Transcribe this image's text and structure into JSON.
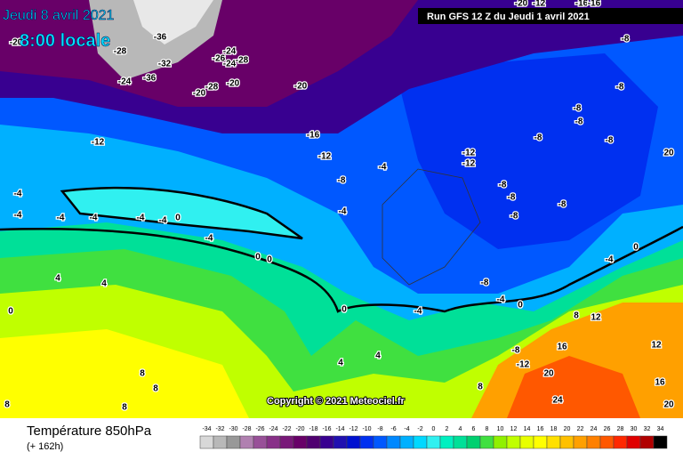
{
  "header": {
    "date": "Jeudi 8 avril 2021",
    "time": "8:00 locale",
    "run": "Run GFS 12 Z du Jeudi 1 avril 2021",
    "copyright": "Copyright © 2021 Meteociel.fr"
  },
  "footer": {
    "title": "Température 850hPa",
    "lead": "(+ 162h)"
  },
  "scale": {
    "ticks": [
      -34,
      -32,
      -30,
      -28,
      -26,
      -24,
      -22,
      -20,
      -18,
      -16,
      -14,
      -12,
      -10,
      -8,
      -6,
      -4,
      -2,
      0,
      2,
      4,
      6,
      8,
      10,
      12,
      14,
      16,
      18,
      20,
      22,
      24,
      26,
      28,
      30,
      32,
      34
    ],
    "colors": [
      "#d8d8d8",
      "#b8b8b8",
      "#989898",
      "#b080b0",
      "#985098",
      "#883088",
      "#781878",
      "#680068",
      "#500070",
      "#380090",
      "#2010b0",
      "#0010d0",
      "#0030f0",
      "#0058ff",
      "#0088ff",
      "#00b0ff",
      "#00d8ff",
      "#30f0f0",
      "#00f0c0",
      "#00e098",
      "#00d070",
      "#40e040",
      "#90f000",
      "#c0ff00",
      "#e8ff00",
      "#ffff00",
      "#ffe000",
      "#ffc000",
      "#ffa000",
      "#ff8000",
      "#ff5800",
      "#ff2800",
      "#e00000",
      "#b00000",
      "#000000"
    ]
  },
  "contour_labels": [
    -36,
    -28,
    -32,
    -24,
    -36,
    -24,
    -26,
    -24,
    -28,
    -28,
    -20,
    -20,
    -20,
    -16,
    -12,
    -12,
    -8,
    -4,
    -4,
    -4,
    -4,
    -4,
    -4,
    -4,
    -4,
    0,
    -4,
    0,
    0,
    4,
    4,
    0,
    0,
    -4,
    -8,
    -4,
    0,
    -12,
    -12,
    -8,
    -8,
    -8,
    -8,
    -8,
    -8,
    -8,
    -8,
    -8,
    -8,
    0,
    -4,
    4,
    4,
    -8,
    -12,
    8,
    12,
    16,
    12,
    16,
    20,
    24,
    20,
    20,
    8,
    8,
    8,
    8,
    8,
    -20,
    -12,
    -16,
    -16,
    -20
  ]
}
